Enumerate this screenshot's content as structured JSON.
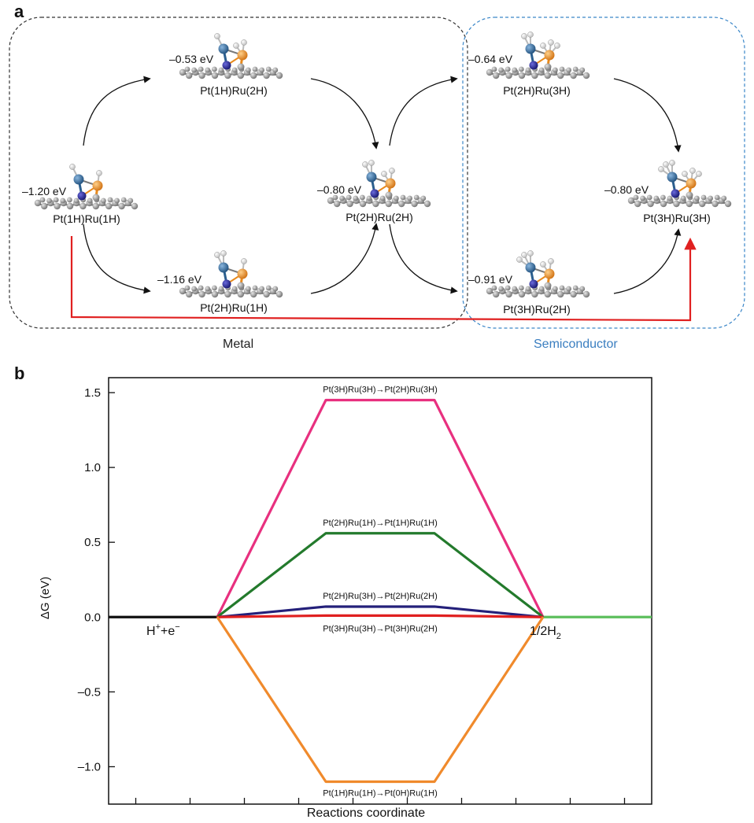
{
  "panel_a": {
    "label": "a",
    "region_metal": "Metal",
    "region_semiconductor": "Semiconductor",
    "colors": {
      "metal_box": "#333333",
      "semi_box": "#3a86c8",
      "semi_text": "#3a7ec0",
      "red_path": "#e02020",
      "pt_atom": "#2b5f8f",
      "ru_atom": "#e88a1c",
      "n_atom": "#1e1e8c",
      "carbon": "#8a8a8a",
      "hydrogen": "#f2f2f2"
    },
    "states": [
      {
        "id": "pt1h-ru1h",
        "name": "Pt(1H)Ru(1H)",
        "energy": "–1.20 eV",
        "h_pt": 1,
        "h_ru": 1
      },
      {
        "id": "pt1h-ru2h",
        "name": "Pt(1H)Ru(2H)",
        "energy": "–0.53 eV",
        "h_pt": 1,
        "h_ru": 2
      },
      {
        "id": "pt2h-ru1h",
        "name": "Pt(2H)Ru(1H)",
        "energy": "–1.16 eV",
        "h_pt": 2,
        "h_ru": 1
      },
      {
        "id": "pt2h-ru2h",
        "name": "Pt(2H)Ru(2H)",
        "energy": "–0.80 eV",
        "h_pt": 2,
        "h_ru": 2
      },
      {
        "id": "pt2h-ru3h",
        "name": "Pt(2H)Ru(3H)",
        "energy": "–0.64 eV",
        "h_pt": 2,
        "h_ru": 3
      },
      {
        "id": "pt3h-ru2h",
        "name": "Pt(3H)Ru(2H)",
        "energy": "–0.91 eV",
        "h_pt": 3,
        "h_ru": 2
      },
      {
        "id": "pt3h-ru3h",
        "name": "Pt(3H)Ru(3H)",
        "energy": "–0.80 eV",
        "h_pt": 3,
        "h_ru": 3
      }
    ]
  },
  "panel_b": {
    "label": "b",
    "chart_data": {
      "type": "line",
      "title": "",
      "xlabel": "Reactions coordinate",
      "ylabel": "ΔG (eV)",
      "ylim": [
        -1.25,
        1.6
      ],
      "xlim": [
        0,
        10
      ],
      "yticks": [
        1.5,
        1.0,
        0.5,
        0.0,
        -0.5,
        -1.0
      ],
      "ytick_labels": [
        "1.5",
        "1.0",
        "0.5",
        "0.0",
        "–0.5",
        "–1.0"
      ],
      "xticks": [
        0.5,
        1.5,
        2.5,
        3.5,
        4.5,
        5.5,
        6.5,
        7.5,
        8.5,
        9.5
      ],
      "left_label_main": "H",
      "left_label_sup1": "+",
      "left_label_mid": "+e",
      "left_label_sup2": "−",
      "right_label_main": "1/2H",
      "right_label_sub": "2",
      "initial_segment": {
        "x": [
          0,
          2
        ],
        "y": [
          0,
          0
        ],
        "color": "#111111"
      },
      "final_segment": {
        "x": [
          8,
          10
        ],
        "y": [
          0,
          0
        ],
        "color": "#5cbf5c"
      },
      "series": [
        {
          "label": "Pt(3H)Ru(3H)→Pt(2H)Ru(3H)",
          "x": [
            2,
            4,
            6,
            8
          ],
          "y": [
            0,
            1.45,
            1.45,
            0
          ],
          "color": "#e8307f"
        },
        {
          "label": "Pt(2H)Ru(1H)→Pt(1H)Ru(1H)",
          "x": [
            2,
            4,
            6,
            8
          ],
          "y": [
            0,
            0.56,
            0.56,
            0
          ],
          "color": "#237a2c"
        },
        {
          "label": "Pt(2H)Ru(3H)→Pt(2H)Ru(2H)",
          "x": [
            2,
            4,
            6,
            8
          ],
          "y": [
            0,
            0.07,
            0.07,
            0
          ],
          "color": "#24207a"
        },
        {
          "label": "Pt(3H)Ru(3H)→Pt(3H)Ru(2H)",
          "x": [
            2,
            4,
            6,
            8
          ],
          "y": [
            0,
            0.01,
            0.01,
            0
          ],
          "color": "#e02020"
        },
        {
          "label": "Pt(1H)Ru(1H)→Pt(0H)Ru(1H)",
          "x": [
            2,
            4,
            6,
            8
          ],
          "y": [
            0,
            -1.1,
            -1.1,
            0
          ],
          "color": "#f08a2c"
        }
      ]
    }
  }
}
